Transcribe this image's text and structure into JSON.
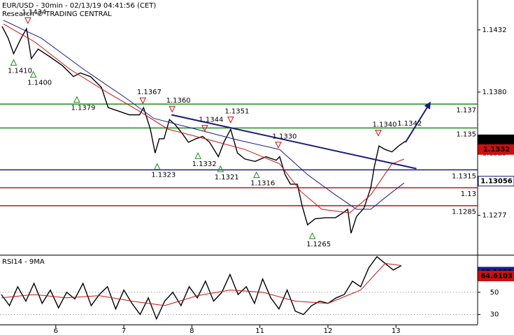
{
  "chart_data": [
    {
      "type": "line",
      "title": "EUR/USD - 30min - 02/13/19 04:41:56 (CET)",
      "subtitle": "Research © TRADING CENTRAL",
      "xlim": [
        0.18,
        7.2
      ],
      "ylim": [
        1.1244,
        1.1457
      ],
      "yticks": [
        1.1277,
        1.1329,
        {
          "value": 1.138,
          "label": "1.1380"
        },
        1.1432
      ],
      "series": [
        {
          "color": "#000000",
          "x": [
            0.21,
            0.3,
            0.38,
            0.49,
            0.57,
            0.64,
            0.74,
            0.9,
            1.1,
            1.26,
            1.36,
            1.51,
            1.67,
            1.77,
            1.93,
            2.08,
            2.23,
            2.29,
            2.39,
            2.46,
            2.52,
            2.59,
            2.67,
            2.75,
            2.85,
            2.95,
            3.06,
            3.16,
            3.26,
            3.39,
            3.47,
            3.57,
            3.67,
            3.78,
            3.93,
            4.09,
            4.24,
            4.29,
            4.37,
            4.45,
            4.55,
            4.62,
            4.7,
            4.81,
            4.96,
            5.11,
            5.22,
            5.29,
            5.34,
            5.42,
            5.53,
            5.63,
            5.68,
            5.75,
            5.84,
            5.94,
            6.04,
            6.14
          ],
          "values": [
            1.1435,
            1.1425,
            1.1412,
            1.1425,
            1.1433,
            1.1408,
            1.1416,
            1.141,
            1.1402,
            1.1393,
            1.1396,
            1.1393,
            1.1384,
            1.1367,
            1.1364,
            1.1361,
            1.1361,
            1.1367,
            1.1349,
            1.1329,
            1.1341,
            1.1341,
            1.1357,
            1.1353,
            1.1346,
            1.1338,
            1.1341,
            1.1343,
            1.1338,
            1.1326,
            1.1338,
            1.1349,
            1.1329,
            1.1324,
            1.1322,
            1.1326,
            1.1323,
            1.1326,
            1.1311,
            1.1303,
            1.1303,
            1.1285,
            1.1269,
            1.1274,
            1.1275,
            1.1275,
            1.1279,
            1.1282,
            1.1262,
            1.1276,
            1.1283,
            1.13,
            1.1317,
            1.1335,
            1.1332,
            1.133,
            1.1335,
            1.1339
          ]
        },
        {
          "color": "#cc1010",
          "x": [
            0.23,
            0.69,
            1.21,
            1.72,
            2.23,
            2.65,
            3.26,
            3.78,
            4.29,
            4.6,
            4.91,
            5.32,
            5.63,
            5.94,
            6.12
          ],
          "values": [
            1.1437,
            1.1422,
            1.1399,
            1.1381,
            1.1364,
            1.1349,
            1.134,
            1.1332,
            1.132,
            1.1297,
            1.1282,
            1.1279,
            1.1294,
            1.132,
            1.1324
          ]
        },
        {
          "color": "#1c1c8a",
          "x": [
            0.23,
            0.79,
            1.41,
            2.03,
            2.44,
            3.06,
            3.67,
            4.29,
            4.7,
            5.11,
            5.42,
            5.63,
            5.89,
            6.12
          ],
          "values": [
            1.144,
            1.1425,
            1.1399,
            1.1375,
            1.1358,
            1.1349,
            1.134,
            1.1332,
            1.1311,
            1.1294,
            1.1282,
            1.1282,
            1.1294,
            1.1304
          ]
        }
      ],
      "levels": [
        {
          "value": 1.137,
          "color": "#1e8c1e"
        },
        {
          "value": 1.135,
          "color": "#1e8c1e"
        },
        {
          "value": 1.1315,
          "color": "#1c1c8a"
        },
        {
          "value": 1.13,
          "color": "#cc1010"
        },
        {
          "value": 1.1285,
          "color": "#cc1010"
        }
      ],
      "trend_lines": [
        {
          "color": "#1c1c7a",
          "x": [
            2.7,
            6.3
          ],
          "values": [
            1.1361,
            1.1316
          ],
          "arrow": false
        },
        {
          "color": "#1c1c7a",
          "x": [
            6.14,
            6.5
          ],
          "values": [
            1.1338,
            1.1371
          ],
          "arrow": true
        }
      ],
      "annotations": [
        {
          "kind": "high",
          "x": 0.59,
          "value": 1.1434,
          "label": "1.1434"
        },
        {
          "kind": "low",
          "x": 0.38,
          "value": 1.141,
          "label": "1.1410"
        },
        {
          "kind": "low",
          "x": 0.67,
          "value": 1.14,
          "label": "1.1400"
        },
        {
          "kind": "low",
          "x": 1.31,
          "value": 1.1379,
          "label": "1.1379"
        },
        {
          "kind": "high",
          "x": 2.28,
          "value": 1.1367,
          "label": "1.1367"
        },
        {
          "kind": "high",
          "x": 2.71,
          "value": 1.136,
          "label": "1.1360"
        },
        {
          "kind": "high",
          "x": 3.19,
          "value": 1.1344,
          "label": "1.1344"
        },
        {
          "kind": "high",
          "x": 3.57,
          "value": 1.1351,
          "label": "1.1351"
        },
        {
          "kind": "high",
          "x": 4.27,
          "value": 1.133,
          "label": "1.1330"
        },
        {
          "kind": "low",
          "x": 2.49,
          "value": 1.1323,
          "label": "1.1323"
        },
        {
          "kind": "low",
          "x": 3.09,
          "value": 1.1332,
          "label": "1.1332"
        },
        {
          "kind": "low",
          "x": 3.42,
          "value": 1.1321,
          "label": "1.1321"
        },
        {
          "kind": "low",
          "x": 3.95,
          "value": 1.1316,
          "label": "1.1316"
        },
        {
          "kind": "low",
          "x": 4.77,
          "value": 1.1265,
          "label": "1.1265"
        },
        {
          "kind": "high",
          "x": 5.74,
          "value": 1.134,
          "label": "1.1340"
        },
        {
          "kind": "text",
          "x": 6.2,
          "value": 1.1342,
          "label": "1.1342"
        }
      ],
      "price_markers": [
        {
          "value": 1.13401,
          "color": "#000000",
          "filled": true
        },
        {
          "value": 1.1332,
          "color": "#cc1010",
          "filled": true
        },
        {
          "value": 1.13056,
          "color": "#1c1c8a",
          "filled": false
        }
      ]
    },
    {
      "type": "line",
      "title": "RSI14 - 9MA",
      "xlim": [
        0.18,
        7.2
      ],
      "ylim": [
        21,
        82.5
      ],
      "yticks": [
        30,
        50
      ],
      "grid": true,
      "xticks": [
        {
          "value": 1,
          "label": "6"
        },
        {
          "value": 2,
          "label": "7"
        },
        {
          "value": 3,
          "label": "8"
        },
        {
          "value": 4,
          "label": "11"
        },
        {
          "value": 5,
          "label": "12"
        },
        {
          "value": 6,
          "label": "13"
        }
      ],
      "series": [
        {
          "color": "#000000",
          "x": [
            0.2,
            0.32,
            0.44,
            0.56,
            0.68,
            0.8,
            0.92,
            1.04,
            1.16,
            1.28,
            1.4,
            1.52,
            1.64,
            1.76,
            1.88,
            2,
            2.12,
            2.24,
            2.36,
            2.48,
            2.6,
            2.72,
            2.84,
            2.96,
            3.08,
            3.2,
            3.32,
            3.44,
            3.56,
            3.68,
            3.8,
            3.92,
            4.04,
            4.16,
            4.28,
            4.4,
            4.52,
            4.64,
            4.76,
            4.88,
            5,
            5.12,
            5.24,
            5.36,
            5.48,
            5.6,
            5.72,
            5.84,
            5.96,
            6.08
          ],
          "values": [
            48,
            38,
            55,
            42,
            58,
            40,
            52,
            36,
            50,
            44,
            58,
            38,
            48,
            55,
            35,
            52,
            40,
            30,
            45,
            26,
            42,
            50,
            38,
            55,
            45,
            60,
            42,
            50,
            66,
            48,
            55,
            40,
            62,
            45,
            35,
            52,
            33,
            30,
            38,
            42,
            40,
            45,
            48,
            60,
            55,
            72,
            82,
            76,
            70,
            74
          ]
        },
        {
          "color": "#cc1010",
          "x": [
            0.2,
            0.68,
            1.16,
            1.64,
            2.12,
            2.6,
            3.08,
            3.56,
            4.04,
            4.52,
            5,
            5.48,
            5.84,
            6.08
          ],
          "values": [
            45,
            48,
            45,
            47,
            42,
            38,
            47,
            52,
            50,
            42,
            40,
            52,
            76,
            74
          ]
        }
      ],
      "price_markers": [
        {
          "value": 68.1635,
          "color": "#1c1c8a",
          "filled": true
        },
        {
          "value": 64.6103,
          "color": "#cc1010",
          "filled": true
        }
      ]
    }
  ]
}
